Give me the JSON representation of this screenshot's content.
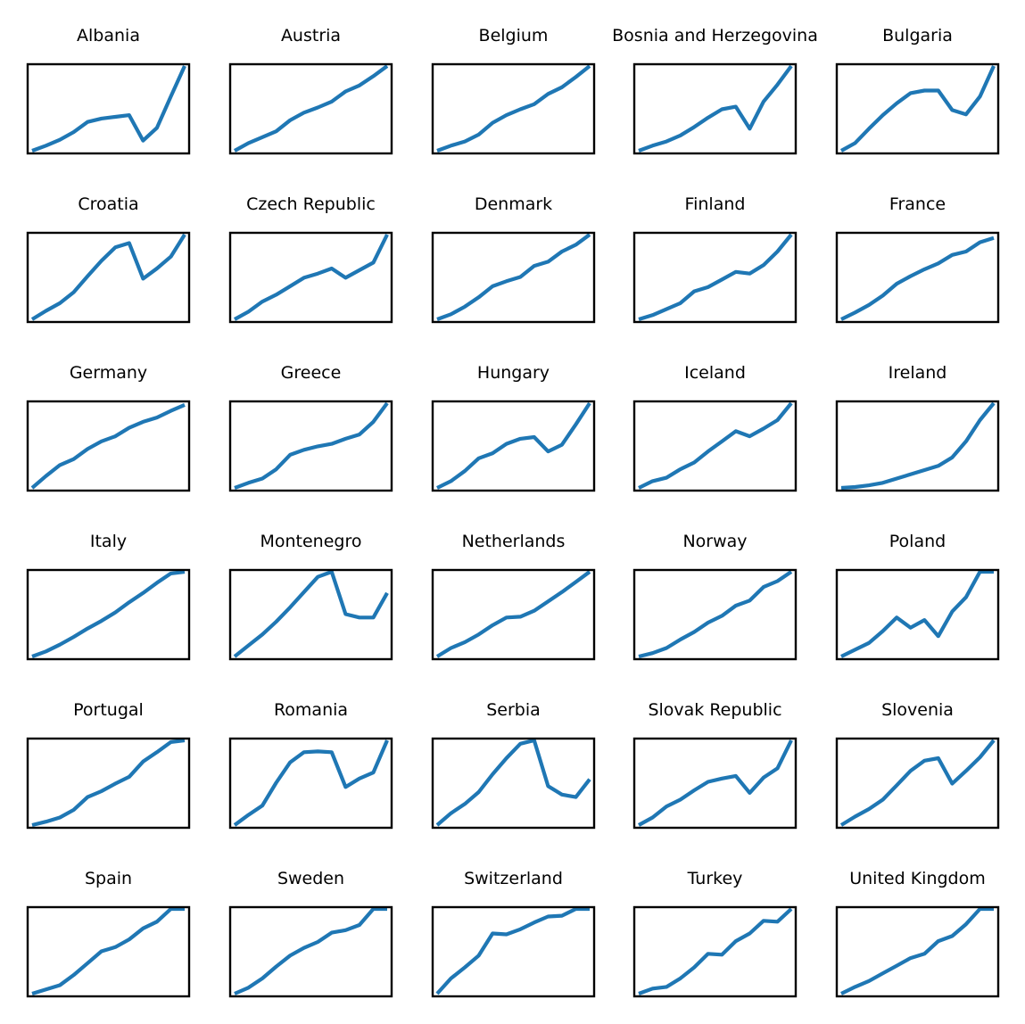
{
  "colors": {
    "line": "#1f77b4",
    "frame": "#000000",
    "background": "#ffffff"
  },
  "chart_data": {
    "type": "line",
    "layout": "small-multiples",
    "grid_rows": 6,
    "grid_cols": 5,
    "axes_visible": false,
    "tick_labels": false,
    "grid": false,
    "legend": "none",
    "x_index_range": [
      0,
      11
    ],
    "panels": [
      {
        "name": "Albania",
        "values": [
          0,
          6,
          13,
          22,
          34,
          38,
          40,
          42,
          12,
          27,
          64,
          100
        ]
      },
      {
        "name": "Austria",
        "values": [
          0,
          9,
          16,
          23,
          36,
          45,
          51,
          58,
          70,
          77,
          88,
          100
        ]
      },
      {
        "name": "Belgium",
        "values": [
          0,
          6,
          11,
          19,
          33,
          42,
          49,
          55,
          67,
          75,
          87,
          100
        ]
      },
      {
        "name": "Bosnia and Herzegovina",
        "values": [
          0,
          6,
          11,
          18,
          28,
          39,
          49,
          52,
          26,
          58,
          78,
          100
        ]
      },
      {
        "name": "Bulgaria",
        "values": [
          0,
          9,
          26,
          42,
          56,
          68,
          71,
          71,
          48,
          43,
          64,
          100
        ]
      },
      {
        "name": "Croatia",
        "values": [
          0,
          10,
          19,
          32,
          51,
          69,
          85,
          90,
          48,
          60,
          74,
          100
        ]
      },
      {
        "name": "Czech Republic",
        "values": [
          0,
          9,
          21,
          29,
          39,
          49,
          54,
          60,
          49,
          58,
          67,
          100
        ]
      },
      {
        "name": "Denmark",
        "values": [
          0,
          6,
          15,
          26,
          39,
          45,
          50,
          63,
          68,
          80,
          88,
          100
        ]
      },
      {
        "name": "Finland",
        "values": [
          0,
          5,
          12,
          19,
          33,
          38,
          47,
          56,
          54,
          64,
          80,
          100
        ]
      },
      {
        "name": "France",
        "values": [
          0,
          8,
          17,
          28,
          42,
          51,
          59,
          66,
          76,
          80,
          91,
          96
        ]
      },
      {
        "name": "Germany",
        "values": [
          0,
          14,
          27,
          34,
          46,
          55,
          61,
          71,
          78,
          83,
          91,
          98
        ]
      },
      {
        "name": "Greece",
        "values": [
          0,
          6,
          11,
          22,
          39,
          45,
          49,
          52,
          58,
          63,
          78,
          100
        ]
      },
      {
        "name": "Hungary",
        "values": [
          0,
          8,
          20,
          35,
          41,
          52,
          58,
          60,
          43,
          51,
          75,
          100
        ]
      },
      {
        "name": "Iceland",
        "values": [
          0,
          8,
          12,
          22,
          30,
          43,
          55,
          67,
          61,
          70,
          80,
          100
        ]
      },
      {
        "name": "Ireland",
        "values": [
          0,
          1,
          3,
          6,
          11,
          16,
          21,
          26,
          36,
          55,
          80,
          100
        ]
      },
      {
        "name": "Italy",
        "values": [
          0,
          6,
          14,
          23,
          33,
          42,
          52,
          64,
          75,
          87,
          98,
          100
        ]
      },
      {
        "name": "Montenegro",
        "values": [
          0,
          13,
          26,
          41,
          58,
          76,
          94,
          100,
          50,
          46,
          46,
          75
        ]
      },
      {
        "name": "Netherlands",
        "values": [
          0,
          10,
          17,
          26,
          37,
          46,
          47,
          54,
          65,
          76,
          88,
          100
        ]
      },
      {
        "name": "Norway",
        "values": [
          0,
          4,
          10,
          20,
          29,
          40,
          48,
          60,
          66,
          82,
          89,
          100
        ]
      },
      {
        "name": "Poland",
        "values": [
          0,
          8,
          16,
          30,
          46,
          34,
          43,
          24,
          53,
          70,
          100,
          100
        ]
      },
      {
        "name": "Portugal",
        "values": [
          0,
          4,
          9,
          18,
          33,
          40,
          49,
          57,
          75,
          86,
          98,
          100
        ]
      },
      {
        "name": "Romania",
        "values": [
          0,
          12,
          23,
          50,
          74,
          86,
          87,
          86,
          45,
          55,
          62,
          100
        ]
      },
      {
        "name": "Serbia",
        "values": [
          0,
          14,
          25,
          39,
          60,
          79,
          96,
          100,
          46,
          36,
          33,
          54
        ]
      },
      {
        "name": "Slovak Republic",
        "values": [
          0,
          9,
          22,
          30,
          41,
          51,
          55,
          58,
          38,
          56,
          67,
          100
        ]
      },
      {
        "name": "Slovenia",
        "values": [
          0,
          10,
          19,
          30,
          47,
          64,
          76,
          79,
          49,
          64,
          80,
          100
        ]
      },
      {
        "name": "Spain",
        "values": [
          0,
          5,
          10,
          22,
          36,
          50,
          55,
          64,
          77,
          85,
          100,
          100
        ]
      },
      {
        "name": "Sweden",
        "values": [
          0,
          7,
          18,
          32,
          45,
          54,
          61,
          72,
          75,
          81,
          100,
          100
        ]
      },
      {
        "name": "Switzerland",
        "values": [
          0,
          18,
          31,
          45,
          71,
          70,
          76,
          84,
          91,
          92,
          100,
          100
        ]
      },
      {
        "name": "Turkey",
        "values": [
          0,
          6,
          8,
          18,
          31,
          47,
          46,
          62,
          71,
          86,
          85,
          100
        ]
      },
      {
        "name": "United Kingdom",
        "values": [
          0,
          8,
          15,
          24,
          33,
          42,
          47,
          62,
          68,
          82,
          100,
          100
        ]
      }
    ]
  }
}
